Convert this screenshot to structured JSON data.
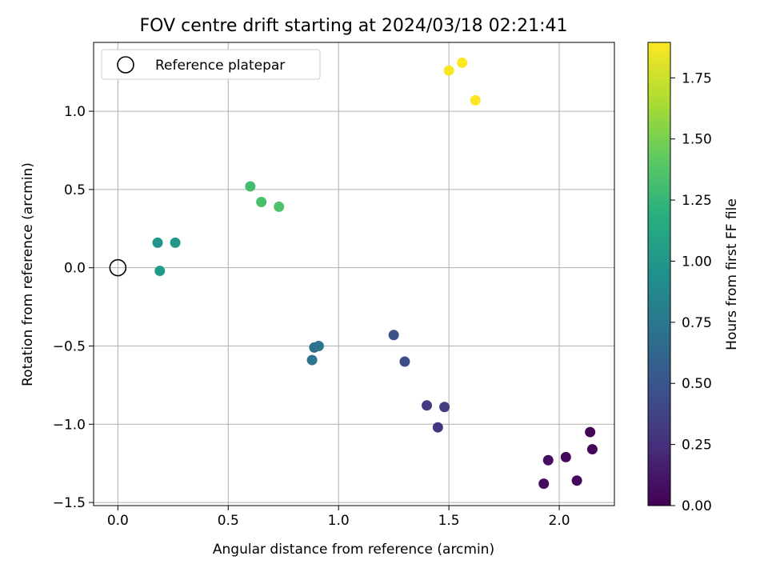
{
  "chart_data": {
    "type": "scatter",
    "title": "FOV centre drift starting at 2024/03/18 02:21:41",
    "xlabel": "Angular distance from reference (arcmin)",
    "ylabel": "Rotation from reference (arcmin)",
    "xlim": [
      -0.11,
      2.25
    ],
    "ylim": [
      -1.52,
      1.44
    ],
    "xticks": [
      0.0,
      0.5,
      1.0,
      1.5,
      2.0
    ],
    "xtick_labels": [
      "0.0",
      "0.5",
      "1.0",
      "1.5",
      "2.0"
    ],
    "yticks": [
      -1.5,
      -1.0,
      -0.5,
      0.0,
      0.5,
      1.0
    ],
    "ytick_labels": [
      "−1.5",
      "−1.0",
      "−0.5",
      "0.0",
      "0.5",
      "1.0"
    ],
    "grid": true,
    "legend": {
      "position": "upper-left",
      "entries": [
        {
          "label": "Reference platepar",
          "marker": "open-circle"
        }
      ]
    },
    "reference_point": {
      "x": 0.0,
      "y": 0.0
    },
    "colorbar": {
      "label": "Hours from first FF file",
      "range": [
        0.0,
        1.895
      ],
      "ticks": [
        0.0,
        0.25,
        0.5,
        0.75,
        1.0,
        1.25,
        1.5,
        1.75
      ],
      "tick_labels": [
        "0.00",
        "0.25",
        "0.50",
        "0.75",
        "1.00",
        "1.25",
        "1.50",
        "1.75"
      ],
      "colormap": "viridis"
    },
    "points": [
      {
        "x": 2.14,
        "y": -1.05,
        "hours": 0.02
      },
      {
        "x": 2.15,
        "y": -1.16,
        "hours": 0.03
      },
      {
        "x": 2.03,
        "y": -1.21,
        "hours": 0.05
      },
      {
        "x": 1.95,
        "y": -1.23,
        "hours": 0.07
      },
      {
        "x": 2.08,
        "y": -1.36,
        "hours": 0.04
      },
      {
        "x": 1.93,
        "y": -1.38,
        "hours": 0.06
      },
      {
        "x": 1.45,
        "y": -1.02,
        "hours": 0.3
      },
      {
        "x": 1.4,
        "y": -0.88,
        "hours": 0.32
      },
      {
        "x": 1.48,
        "y": -0.89,
        "hours": 0.34
      },
      {
        "x": 1.3,
        "y": -0.6,
        "hours": 0.45
      },
      {
        "x": 1.25,
        "y": -0.43,
        "hours": 0.47
      },
      {
        "x": 0.89,
        "y": -0.51,
        "hours": 0.7
      },
      {
        "x": 0.91,
        "y": -0.5,
        "hours": 0.72
      },
      {
        "x": 0.88,
        "y": -0.59,
        "hours": 0.74
      },
      {
        "x": 0.18,
        "y": 0.16,
        "hours": 0.98
      },
      {
        "x": 0.26,
        "y": 0.16,
        "hours": 1.0
      },
      {
        "x": 0.19,
        "y": -0.02,
        "hours": 1.02
      },
      {
        "x": 0.6,
        "y": 0.52,
        "hours": 1.32
      },
      {
        "x": 0.65,
        "y": 0.42,
        "hours": 1.34
      },
      {
        "x": 0.73,
        "y": 0.39,
        "hours": 1.36
      },
      {
        "x": 1.5,
        "y": 1.26,
        "hours": 1.88
      },
      {
        "x": 1.56,
        "y": 1.31,
        "hours": 1.89
      },
      {
        "x": 1.62,
        "y": 1.07,
        "hours": 1.89
      }
    ]
  }
}
